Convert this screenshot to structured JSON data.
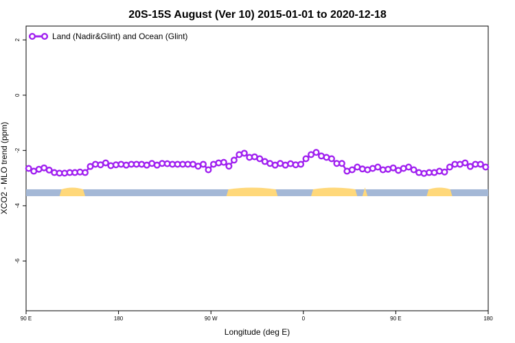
{
  "chart_data": {
    "type": "line",
    "title": "20S-15S August (Ver 10)   2015-01-01 to 2020-12-18",
    "xlabel": "Longitude (deg E)",
    "ylabel": "XCO2 - MLO trend (ppm)",
    "xlim": [
      90,
      450
    ],
    "ylim": [
      -7.8,
      2.5
    ],
    "x_ticks": [
      {
        "value": 90,
        "label": "90 E"
      },
      {
        "value": 162,
        "label": "180"
      },
      {
        "value": 234,
        "label": "90 W"
      },
      {
        "value": 306,
        "label": "0"
      },
      {
        "value": 378,
        "label": "90 E"
      },
      {
        "value": 450,
        "label": "180"
      }
    ],
    "y_ticks": [
      {
        "value": 2,
        "label": "2"
      },
      {
        "value": 0,
        "label": "0"
      },
      {
        "value": -2,
        "label": "-2"
      },
      {
        "value": -4,
        "label": "-4"
      },
      {
        "value": -6,
        "label": "-6"
      }
    ],
    "legend": {
      "position": "top-left"
    },
    "series": [
      {
        "name": "Land (Nadir&Glint) and Ocean (Glint)",
        "color": "#a020f0",
        "x": [
          92,
          96,
          100,
          104,
          108,
          112,
          116,
          120,
          124,
          128,
          132,
          136,
          140,
          144,
          148,
          152,
          156,
          160,
          164,
          168,
          172,
          176,
          180,
          184,
          188,
          192,
          196,
          200,
          204,
          208,
          212,
          216,
          220,
          224,
          228,
          232,
          236,
          240,
          244,
          248,
          252,
          256,
          260,
          264,
          268,
          272,
          276,
          280,
          284,
          288,
          292,
          296,
          300,
          304,
          308,
          312,
          316,
          320,
          324,
          328,
          332,
          336,
          340,
          344,
          348,
          352,
          356,
          360,
          364,
          368,
          372,
          376,
          380,
          384,
          388,
          392,
          396,
          400,
          404,
          408,
          412,
          416,
          420,
          424,
          428,
          432,
          436,
          440,
          444,
          448
        ],
        "y": [
          -2.65,
          -2.75,
          -2.68,
          -2.63,
          -2.71,
          -2.8,
          -2.82,
          -2.82,
          -2.8,
          -2.8,
          -2.78,
          -2.8,
          -2.58,
          -2.5,
          -2.52,
          -2.45,
          -2.55,
          -2.52,
          -2.5,
          -2.53,
          -2.5,
          -2.5,
          -2.5,
          -2.53,
          -2.47,
          -2.53,
          -2.47,
          -2.48,
          -2.5,
          -2.5,
          -2.5,
          -2.5,
          -2.5,
          -2.57,
          -2.5,
          -2.7,
          -2.5,
          -2.45,
          -2.43,
          -2.57,
          -2.35,
          -2.15,
          -2.1,
          -2.25,
          -2.23,
          -2.3,
          -2.4,
          -2.47,
          -2.53,
          -2.47,
          -2.53,
          -2.48,
          -2.52,
          -2.5,
          -2.3,
          -2.15,
          -2.07,
          -2.2,
          -2.25,
          -2.3,
          -2.47,
          -2.47,
          -2.75,
          -2.7,
          -2.6,
          -2.67,
          -2.7,
          -2.65,
          -2.6,
          -2.7,
          -2.68,
          -2.63,
          -2.72,
          -2.65,
          -2.6,
          -2.7,
          -2.8,
          -2.83,
          -2.8,
          -2.8,
          -2.75,
          -2.78,
          -2.6,
          -2.5,
          -2.5,
          -2.45,
          -2.58,
          -2.5,
          -2.5,
          -2.6
        ]
      }
    ],
    "surface_strip": {
      "y": -3.53,
      "ocean_color": "#a4b8d6",
      "land_color": "#ffd87a",
      "land_segments": [
        [
          116,
          136
        ],
        [
          246,
          286
        ],
        [
          312,
          348
        ],
        [
          352,
          356
        ],
        [
          402,
          422
        ]
      ]
    }
  }
}
